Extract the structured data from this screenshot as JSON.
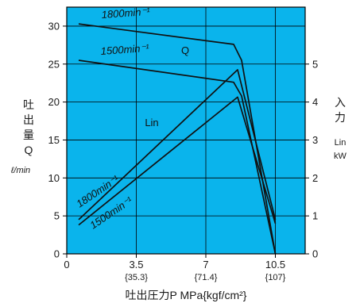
{
  "chart_data": {
    "type": "line",
    "colors": {
      "plot_bg": "#0ab4ec",
      "line": "#111111",
      "grid": "#000000"
    },
    "x_axis": {
      "label": "吐出圧力P MPa{kgf/cm²}",
      "ticks": [
        {
          "value": 0,
          "label": "0",
          "sub": ""
        },
        {
          "value": 3.5,
          "label": "3.5",
          "sub": "{35.3}"
        },
        {
          "value": 7,
          "label": "7",
          "sub": "{71.4}"
        },
        {
          "value": 10.5,
          "label": "10.5",
          "sub": "{107}"
        }
      ],
      "range": [
        0,
        12
      ]
    },
    "y_left": {
      "label_lines": [
        "吐",
        "出",
        "量",
        "Q"
      ],
      "unit": "ℓ/min",
      "ticks": [
        0,
        5,
        10,
        15,
        20,
        25,
        30
      ],
      "range": [
        0,
        32.5
      ]
    },
    "y_right": {
      "label_lines": [
        "入",
        "力"
      ],
      "sub_lines": [
        "Lin",
        "kW"
      ],
      "ticks": [
        0,
        1,
        2,
        3,
        4,
        5
      ],
      "range": [
        0,
        6.5
      ]
    },
    "series": [
      {
        "name": "1800min⁻¹",
        "axis": "left",
        "points": [
          [
            0.6,
            30.3
          ],
          [
            8.4,
            27.6
          ],
          [
            8.8,
            25.5
          ],
          [
            10.5,
            0
          ]
        ]
      },
      {
        "name": "1500min⁻¹",
        "axis": "left",
        "points": [
          [
            0.6,
            25.5
          ],
          [
            8.4,
            22.6
          ],
          [
            8.8,
            20.8
          ],
          [
            10.5,
            0
          ]
        ]
      },
      {
        "name": "1800min⁻¹",
        "axis": "right",
        "points": [
          [
            0.6,
            0.9
          ],
          [
            8.6,
            4.85
          ],
          [
            10.5,
            0.9
          ]
        ]
      },
      {
        "name": "1500min⁻¹",
        "axis": "right",
        "points": [
          [
            0.6,
            0.76
          ],
          [
            8.6,
            4.13
          ],
          [
            10.5,
            0.8
          ]
        ]
      }
    ],
    "annotations": {
      "q_label": "Q",
      "lin_label": "Lin",
      "q_1800": "1800min⁻¹",
      "q_1500": "1500min⁻¹",
      "lin_1800": "1800min⁻¹",
      "lin_1500": "1500min⁻¹"
    }
  }
}
